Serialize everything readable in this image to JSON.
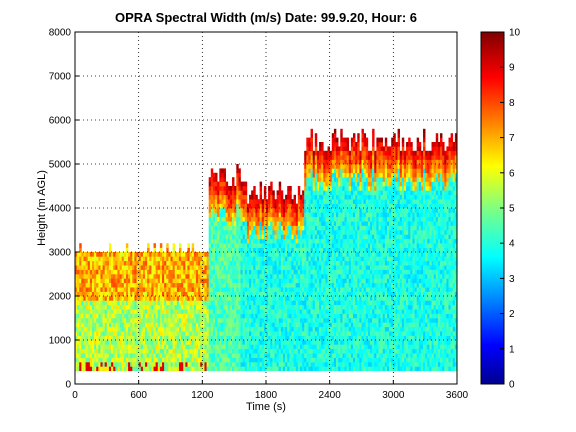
{
  "chart_data": {
    "type": "heatmap",
    "title": "OPRA Spectral Width (m/s)  Date: 99.9.20, Hour: 6",
    "xlabel": "Time (s)",
    "ylabel": "Height (m AGL)",
    "xlim": [
      0,
      3600
    ],
    "ylim": [
      0,
      8000
    ],
    "x_ticks": [
      "0",
      "600",
      "1200",
      "1800",
      "2400",
      "3000",
      "3600"
    ],
    "y_ticks": [
      "0",
      "1000",
      "2000",
      "3000",
      "4000",
      "5000",
      "6000",
      "7000",
      "8000"
    ],
    "colorbar": {
      "min": 0,
      "max": 10,
      "ticks": [
        "0",
        "1",
        "2",
        "3",
        "4",
        "5",
        "6",
        "7",
        "8",
        "9",
        "10"
      ],
      "colormap": "jet"
    },
    "grid": true,
    "data_description": {
      "time_range_s": [
        0,
        3600
      ],
      "lowest_height_m": 300,
      "segments": [
        {
          "x_start": 0,
          "x_end": 1250,
          "top_height_m": 3000,
          "typical_width_ms": 5.5
        },
        {
          "x_start": 1250,
          "x_end": 1550,
          "top_height_m": 4700,
          "typical_width_ms": 4.5
        },
        {
          "x_start": 1550,
          "x_end": 2150,
          "top_height_m": 4300,
          "typical_width_ms": 4.0
        },
        {
          "x_start": 2150,
          "x_end": 3600,
          "top_height_m": 5500,
          "typical_width_ms": 4.0
        }
      ],
      "upper_layer_width_ms": 9.5
    }
  }
}
